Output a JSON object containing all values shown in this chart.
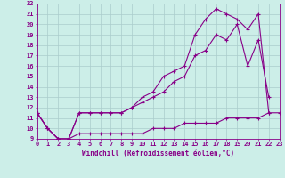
{
  "line1": {
    "x": [
      0,
      1,
      2,
      3,
      4,
      5,
      6,
      7,
      8,
      9,
      10,
      11,
      12,
      13,
      14,
      15,
      16,
      17,
      18,
      19,
      20,
      21,
      22,
      23
    ],
    "y": [
      11.5,
      10.0,
      9.0,
      9.0,
      9.5,
      9.5,
      9.5,
      9.5,
      9.5,
      9.5,
      9.5,
      10.0,
      10.0,
      10.0,
      10.5,
      10.5,
      10.5,
      10.5,
      11.0,
      11.0,
      11.0,
      11.0,
      11.5,
      11.5
    ]
  },
  "line2": {
    "x": [
      0,
      1,
      2,
      3,
      4,
      5,
      6,
      7,
      8,
      9,
      10,
      11,
      12,
      13,
      14,
      15,
      16,
      17,
      18,
      19,
      20,
      21,
      22
    ],
    "y": [
      11.5,
      10.0,
      9.0,
      9.0,
      11.5,
      11.5,
      11.5,
      11.5,
      11.5,
      12.0,
      12.5,
      13.0,
      13.5,
      14.5,
      15.0,
      17.0,
      17.5,
      19.0,
      18.5,
      20.0,
      16.0,
      18.5,
      13.0
    ]
  },
  "line3": {
    "x": [
      0,
      1,
      2,
      3,
      4,
      5,
      6,
      7,
      8,
      9,
      10,
      11,
      12,
      13,
      14,
      15,
      16,
      17,
      18,
      19,
      20,
      21,
      22
    ],
    "y": [
      11.5,
      10.0,
      9.0,
      9.0,
      11.5,
      11.5,
      11.5,
      11.5,
      11.5,
      12.0,
      13.0,
      13.5,
      15.0,
      15.5,
      16.0,
      19.0,
      20.5,
      21.5,
      21.0,
      20.5,
      19.5,
      21.0,
      11.5
    ]
  },
  "bg_color": "#cceee8",
  "grid_color": "#aacccc",
  "line_color": "#880088",
  "xlim": [
    0,
    23
  ],
  "ylim": [
    9,
    22
  ],
  "xticks": [
    0,
    1,
    2,
    3,
    4,
    5,
    6,
    7,
    8,
    9,
    10,
    11,
    12,
    13,
    14,
    15,
    16,
    17,
    18,
    19,
    20,
    21,
    22,
    23
  ],
  "yticks": [
    9,
    10,
    11,
    12,
    13,
    14,
    15,
    16,
    17,
    18,
    19,
    20,
    21,
    22
  ],
  "xlabel": "Windchill (Refroidissement éolien,°C)",
  "xlabel_fontsize": 5.5,
  "tick_fontsize": 5.0,
  "marker": "+",
  "markersize": 3.5,
  "linewidth": 0.8
}
